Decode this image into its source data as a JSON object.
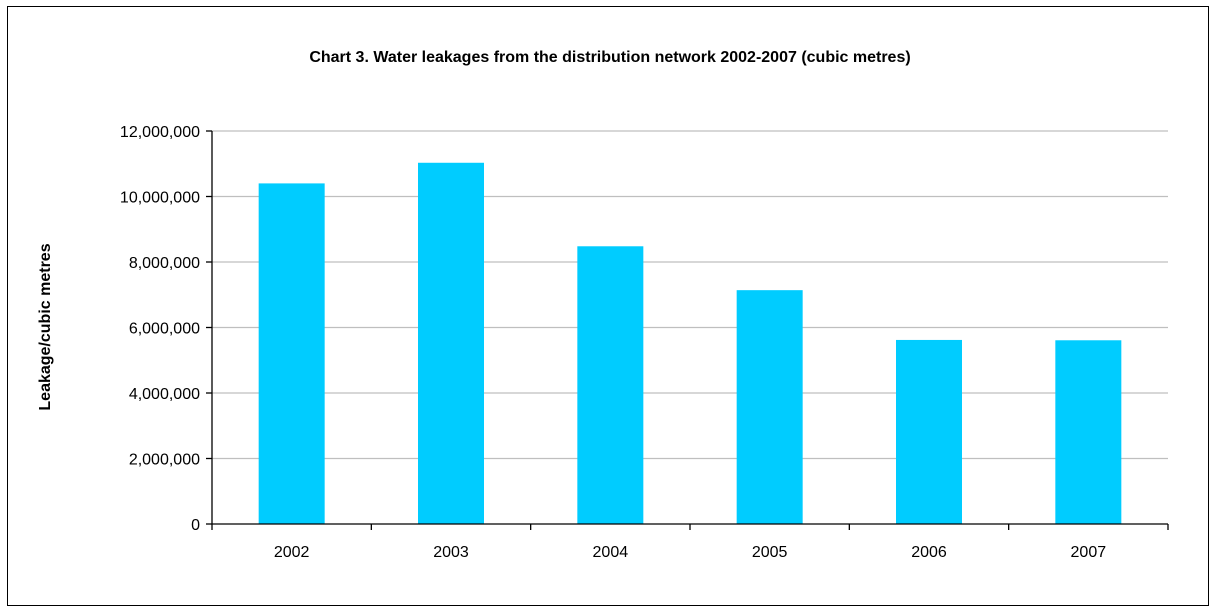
{
  "chart_data": {
    "type": "bar",
    "title": "Chart 3.  Water leakages from the distribution network 2002-2007 (cubic metres)",
    "xlabel": "",
    "ylabel": "Leakage/cubic metres",
    "categories": [
      "2002",
      "2003",
      "2004",
      "2005",
      "2006",
      "2007"
    ],
    "values": [
      10400000,
      11030000,
      8480000,
      7140000,
      5620000,
      5610000
    ],
    "ylim": [
      0,
      12000000
    ],
    "yticks": [
      0,
      2000000,
      4000000,
      6000000,
      8000000,
      10000000,
      12000000
    ],
    "ytick_labels": [
      "0",
      "2,000,000",
      "4,000,000",
      "6,000,000",
      "8,000,000",
      "10,000,000",
      "12,000,000"
    ],
    "grid": true,
    "legend": "none",
    "colors": {
      "bar": "#00CCFF",
      "grid": "#BFBFBF",
      "axis": "#000000"
    }
  }
}
